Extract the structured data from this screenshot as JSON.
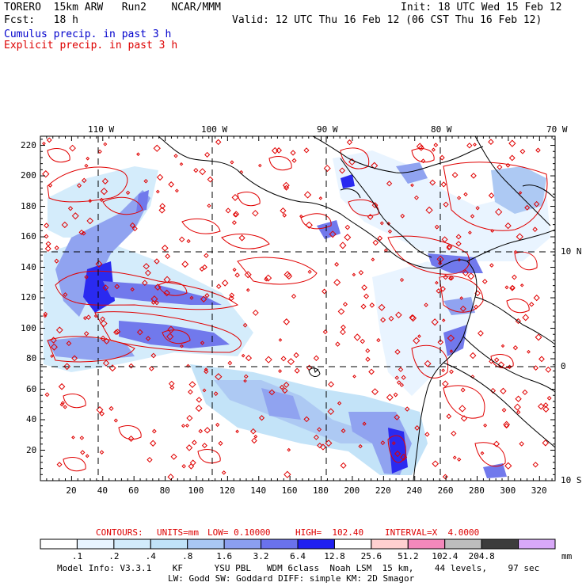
{
  "header": {
    "model_name": "TORERO  15km ARW   Run2    NCAR/MMM",
    "init": "Init: 18 UTC Wed 15 Feb 12",
    "fcst": "Fcst:   18 h",
    "valid": "Valid: 12 UTC Thu 16 Feb 12 (06 CST Thu 16 Feb 12)",
    "field1": "Cumulus precip. in past 3 h",
    "field2": "Explicit precip. in past 3 h",
    "field1_color": "#0000cc",
    "field2_color": "#dd0000"
  },
  "map": {
    "lon_labels": [
      "110 W",
      "100 W",
      "90 W",
      "80 W",
      "70 W"
    ],
    "lat_labels": [
      "10 N",
      "0",
      "10 S"
    ],
    "y_ticks": [
      "220",
      "200",
      "180",
      "160",
      "140",
      "120",
      "100",
      "80",
      "60",
      "40",
      "20"
    ],
    "x_ticks": [
      "20",
      "40",
      "60",
      "80",
      "100",
      "120",
      "140",
      "160",
      "180",
      "200",
      "220",
      "240",
      "260",
      "280",
      "300",
      "320"
    ]
  },
  "contour_info": {
    "label": "CONTOURS:",
    "units": "UNITS=mm",
    "low": "LOW= 0.10000",
    "high": "HIGH=  102.40",
    "interval": "INTERVAL=X  4.0000",
    "color": "#dd0000"
  },
  "legend": {
    "unit": "mm",
    "boundaries": [
      ".1",
      ".2",
      ".4",
      ".8",
      "1.6",
      "3.2",
      "6.4",
      "12.8",
      "25.6",
      "51.2",
      "102.4",
      "204.8"
    ],
    "colors": [
      "#ffffff",
      "#e8f4ff",
      "#d2ebfb",
      "#c0e2f8",
      "#a9c7f3",
      "#8b9ff0",
      "#6a72ec",
      "#1f1ff0",
      "#ffffff",
      "#ffd0d0",
      "#f388bb",
      "#bdbdbd",
      "#3c3c3c",
      "#d8a8f8"
    ]
  },
  "footer": {
    "line1": "Model Info: V3.3.1    KF      YSU PBL   WDM 6class  Noah LSM  15 km,    44 levels,    97 sec",
    "line2": "LW: Godd SW: Goddard DIFF: simple KM: 2D Smagor"
  }
}
